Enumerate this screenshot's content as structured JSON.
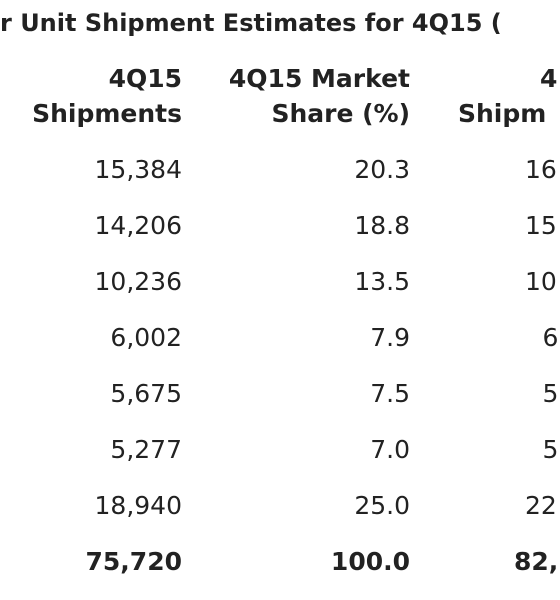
{
  "title": "r Unit Shipment Estimates for 4Q15 (",
  "table": {
    "header": [
      [
        "4Q15",
        "Shipments"
      ],
      [
        "4Q15 Market",
        "Share (%)"
      ],
      [
        "4",
        "Shipm"
      ]
    ],
    "rows": [
      [
        "15,384",
        "20.3",
        "16"
      ],
      [
        "14,206",
        "18.8",
        "15"
      ],
      [
        "10,236",
        "13.5",
        "10"
      ],
      [
        "6,002",
        "7.9",
        "6"
      ],
      [
        "5,675",
        "7.5",
        "5"
      ],
      [
        "5,277",
        "7.0",
        "5"
      ],
      [
        "18,940",
        "25.0",
        "22"
      ],
      [
        "75,720",
        "100.0",
        "82,"
      ]
    ]
  }
}
